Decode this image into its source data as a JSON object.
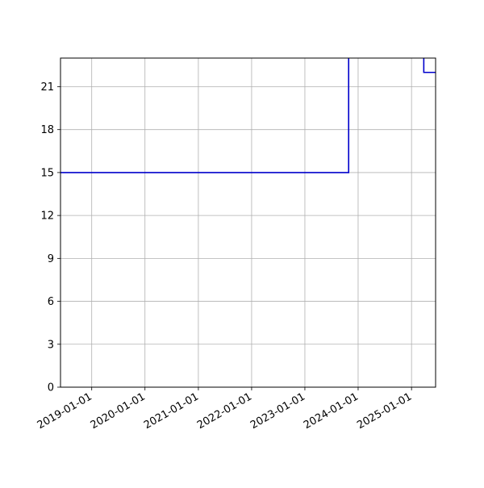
{
  "chart_data": {
    "type": "line",
    "step": "post",
    "title": "",
    "xlabel": "",
    "ylabel": "",
    "grid": true,
    "line_color": "#0000cc",
    "x_axis": {
      "kind": "date",
      "range": [
        "2018-06-01",
        "2025-06-15"
      ],
      "ticks": [
        "2019-01-01",
        "2020-01-01",
        "2021-01-01",
        "2022-01-01",
        "2023-01-01",
        "2024-01-01",
        "2025-01-01"
      ],
      "tick_label_rotation": 30
    },
    "y_axis": {
      "range": [
        0,
        23
      ],
      "ticks": [
        0,
        3,
        6,
        9,
        12,
        15,
        18,
        21
      ]
    },
    "series": [
      {
        "segments": [
          {
            "points": [
              {
                "x": "2018-06-01",
                "y": 15
              },
              {
                "x": "2023-10-28",
                "y": 15
              },
              {
                "x": "2023-10-28",
                "y": 23
              }
            ]
          },
          {
            "points": [
              {
                "x": "2025-03-26",
                "y": 23
              },
              {
                "x": "2025-03-26",
                "y": 22
              },
              {
                "x": "2025-06-15",
                "y": 22
              }
            ]
          }
        ]
      }
    ]
  }
}
